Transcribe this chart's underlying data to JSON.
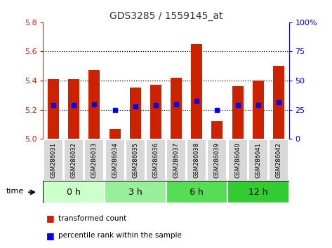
{
  "title": "GDS3285 / 1559145_at",
  "samples": [
    "GSM286031",
    "GSM286032",
    "GSM286033",
    "GSM286034",
    "GSM286035",
    "GSM286036",
    "GSM286037",
    "GSM286038",
    "GSM286039",
    "GSM286040",
    "GSM286041",
    "GSM286042"
  ],
  "bar_tops": [
    5.41,
    5.41,
    5.47,
    5.07,
    5.35,
    5.37,
    5.42,
    5.65,
    5.12,
    5.36,
    5.4,
    5.5
  ],
  "bar_bottom": 5.0,
  "percentile_vals": [
    5.23,
    5.23,
    5.235,
    5.2,
    5.22,
    5.23,
    5.235,
    5.26,
    5.2,
    5.23,
    5.23,
    5.25
  ],
  "ylim_left": [
    5.0,
    5.8
  ],
  "ylim_right": [
    0,
    100
  ],
  "yticks_left": [
    5.0,
    5.2,
    5.4,
    5.6,
    5.8
  ],
  "yticks_right": [
    0,
    25,
    50,
    75,
    100
  ],
  "bar_color": "#cc2200",
  "dot_color": "#0000ee",
  "groups": [
    {
      "label": "0 h",
      "start": 0,
      "end": 3,
      "color": "#ccffcc"
    },
    {
      "label": "3 h",
      "start": 3,
      "end": 6,
      "color": "#99ee99"
    },
    {
      "label": "6 h",
      "start": 6,
      "end": 9,
      "color": "#55dd55"
    },
    {
      "label": "12 h",
      "start": 9,
      "end": 12,
      "color": "#33cc33"
    }
  ],
  "time_label": "time",
  "legend_bar_label": "transformed count",
  "legend_dot_label": "percentile rank within the sample",
  "title_color": "#333333",
  "left_axis_color": "#cc2200",
  "right_axis_color": "#0000ee",
  "bar_width": 0.55,
  "sample_box_color": "#d8d8d8",
  "sample_box_edge": "#ffffff"
}
